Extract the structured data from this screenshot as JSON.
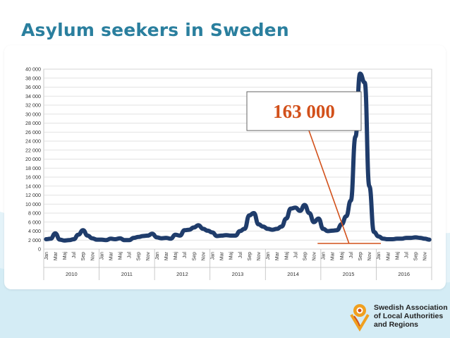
{
  "slide": {
    "title": "Asylum seekers in Sweden"
  },
  "annotation": {
    "text": "163 000",
    "color": "#d2501a"
  },
  "logo": {
    "lines": [
      "Swedish Association",
      "of Local Authorities",
      "and Regions"
    ]
  },
  "colors": {
    "line": "#1f3c6b",
    "accent": "#d2501a",
    "title": "#2a7f9e"
  },
  "chart_data": {
    "type": "line",
    "title": "",
    "xlabel": "",
    "ylabel": "",
    "ylim": [
      0,
      40000
    ],
    "yticks": [
      0,
      2000,
      4000,
      6000,
      8000,
      10000,
      12000,
      14000,
      16000,
      18000,
      20000,
      22000,
      24000,
      26000,
      28000,
      30000,
      32000,
      34000,
      36000,
      38000,
      40000
    ],
    "ytick_labels": [
      "0",
      "2 000",
      "4 000",
      "6 000",
      "8 000",
      "10 000",
      "12 000",
      "14 000",
      "16 000",
      "18 000",
      "20 000",
      "22 000",
      "24 000",
      "26 000",
      "28 000",
      "30 000",
      "32 000",
      "34 000",
      "36 000",
      "38 000",
      "40 000"
    ],
    "grid": true,
    "legend": "none",
    "years": [
      "2010",
      "2011",
      "2012",
      "2013",
      "2014",
      "2015",
      "2016"
    ],
    "month_labels": [
      "Jan",
      "Mar",
      "Maj",
      "Jul",
      "Sep",
      "Nov"
    ],
    "series": [
      {
        "name": "",
        "values": [
          2200,
          2300,
          3500,
          2100,
          1900,
          2000,
          2200,
          3200,
          4200,
          3000,
          2400,
          2100,
          2100,
          2000,
          2300,
          2200,
          2400,
          2000,
          2000,
          2500,
          2700,
          2900,
          3000,
          3400,
          2600,
          2400,
          2500,
          2300,
          3200,
          3000,
          4200,
          4300,
          4800,
          5300,
          4500,
          4100,
          3700,
          2900,
          3000,
          3100,
          3000,
          3000,
          4000,
          4500,
          7500,
          8000,
          5500,
          5000,
          4500,
          4300,
          4500,
          5000,
          6800,
          9000,
          9200,
          8500,
          9800,
          8000,
          6000,
          6800,
          4500,
          4000,
          4100,
          4200,
          5500,
          7300,
          10800,
          25000,
          39000,
          37000,
          14000,
          3800,
          2800,
          2300,
          2200,
          2200,
          2300,
          2300,
          2500,
          2500,
          2600,
          2500,
          2300,
          2100
        ]
      }
    ]
  }
}
